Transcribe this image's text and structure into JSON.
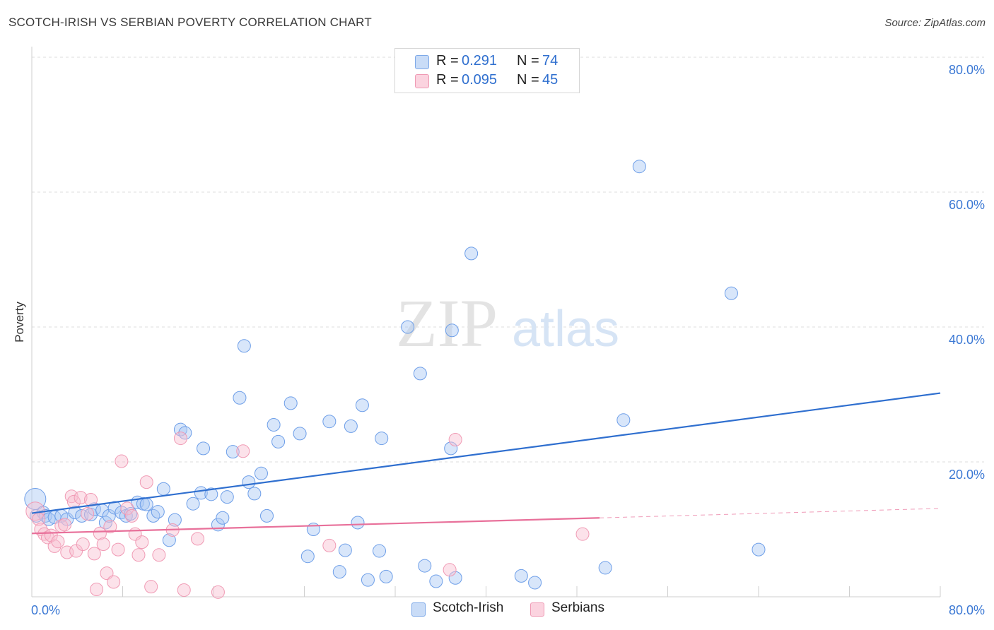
{
  "title": "SCOTCH-IRISH VS SERBIAN POVERTY CORRELATION CHART",
  "source": "Source: ZipAtlas.com",
  "watermark": {
    "zip": "ZIP",
    "atlas": "atlas"
  },
  "legend_top": [
    {
      "r_label": "R =",
      "r_value": "0.291",
      "n_label": "N =",
      "n_value": "74",
      "color": "#a8c8f4"
    },
    {
      "r_label": "R =",
      "r_value": "0.095",
      "n_label": "N =",
      "n_value": "45",
      "color": "#f8bfd0"
    }
  ],
  "legend_bottom": [
    {
      "label": "Scotch-Irish",
      "color": "#a8c8f4"
    },
    {
      "label": "Serbians",
      "color": "#f8bfd0"
    }
  ],
  "chart_data": {
    "type": "scatter",
    "title": "SCOTCH-IRISH VS SERBIAN POVERTY CORRELATION CHART",
    "xlabel": "",
    "ylabel": "Poverty",
    "xlim": [
      0,
      80
    ],
    "ylim": [
      0,
      80
    ],
    "x_tick_labels": [
      "0.0%",
      "80.0%"
    ],
    "y_tick_labels": [
      "20.0%",
      "40.0%",
      "60.0%",
      "80.0%"
    ],
    "y_ticks": [
      20,
      40,
      60,
      80
    ],
    "grid": true,
    "legend_position": "top-center",
    "series": [
      {
        "name": "Scotch-Irish",
        "color": "#6d9ee8",
        "fill": "#a8c8f4",
        "trend": {
          "x0": 0,
          "y0": 12.4,
          "x1": 80,
          "y1": 30.2,
          "color": "#2f6fcf"
        },
        "points": [
          [
            0.3,
            14.5
          ],
          [
            0.4,
            12.0
          ],
          [
            1.0,
            12.5
          ],
          [
            1.2,
            12.0
          ],
          [
            1.5,
            11.5
          ],
          [
            2.0,
            11.8
          ],
          [
            2.6,
            12.0
          ],
          [
            3.1,
            11.5
          ],
          [
            3.8,
            12.5
          ],
          [
            4.4,
            12.0
          ],
          [
            5.2,
            12.2
          ],
          [
            5.5,
            13.0
          ],
          [
            6.2,
            12.8
          ],
          [
            6.5,
            11.0
          ],
          [
            6.8,
            12.0
          ],
          [
            7.3,
            13.2
          ],
          [
            7.9,
            12.5
          ],
          [
            8.3,
            12.0
          ],
          [
            8.7,
            12.3
          ],
          [
            9.3,
            14.0
          ],
          [
            9.8,
            13.8
          ],
          [
            10.1,
            13.7
          ],
          [
            10.7,
            12.0
          ],
          [
            11.1,
            12.6
          ],
          [
            11.6,
            16.0
          ],
          [
            12.1,
            8.4
          ],
          [
            12.6,
            11.4
          ],
          [
            13.1,
            24.8
          ],
          [
            13.5,
            24.3
          ],
          [
            14.2,
            13.8
          ],
          [
            14.9,
            15.4
          ],
          [
            15.1,
            22.0
          ],
          [
            15.8,
            15.2
          ],
          [
            16.4,
            10.7
          ],
          [
            16.8,
            11.7
          ],
          [
            17.2,
            14.8
          ],
          [
            17.7,
            21.5
          ],
          [
            18.3,
            29.5
          ],
          [
            18.7,
            37.2
          ],
          [
            19.1,
            17.0
          ],
          [
            19.6,
            15.3
          ],
          [
            20.2,
            18.3
          ],
          [
            20.7,
            12.0
          ],
          [
            21.3,
            25.5
          ],
          [
            21.7,
            23.0
          ],
          [
            22.8,
            28.7
          ],
          [
            23.6,
            24.2
          ],
          [
            24.3,
            6.0
          ],
          [
            24.8,
            10.0
          ],
          [
            26.2,
            26.0
          ],
          [
            27.1,
            3.7
          ],
          [
            27.6,
            6.9
          ],
          [
            28.1,
            25.3
          ],
          [
            28.7,
            11.0
          ],
          [
            29.1,
            28.4
          ],
          [
            29.6,
            2.5
          ],
          [
            30.6,
            6.8
          ],
          [
            30.8,
            23.5
          ],
          [
            31.2,
            3.0
          ],
          [
            33.1,
            40.0
          ],
          [
            34.2,
            33.1
          ],
          [
            34.6,
            4.6
          ],
          [
            35.6,
            2.3
          ],
          [
            36.9,
            22.0
          ],
          [
            37.0,
            39.5
          ],
          [
            37.3,
            2.8
          ],
          [
            38.7,
            50.9
          ],
          [
            43.1,
            3.1
          ],
          [
            44.3,
            2.1
          ],
          [
            50.5,
            4.3
          ],
          [
            52.1,
            26.2
          ],
          [
            53.5,
            63.8
          ],
          [
            61.6,
            45.0
          ],
          [
            64.0,
            7.0
          ]
        ]
      },
      {
        "name": "Serbians",
        "color": "#f09ab4",
        "fill": "#f8bfd0",
        "trend": {
          "x0": 0,
          "y0": 9.4,
          "x1": 50,
          "y1": 11.7,
          "x2": 80,
          "y2": 13.1,
          "color": "#e8709a"
        },
        "points": [
          [
            0.3,
            12.7
          ],
          [
            0.6,
            11.5
          ],
          [
            0.8,
            10.0
          ],
          [
            1.1,
            9.3
          ],
          [
            1.4,
            8.8
          ],
          [
            1.7,
            9.1
          ],
          [
            2.0,
            7.5
          ],
          [
            2.3,
            8.2
          ],
          [
            2.6,
            10.5
          ],
          [
            2.9,
            10.7
          ],
          [
            3.1,
            6.6
          ],
          [
            3.5,
            14.9
          ],
          [
            3.7,
            14.1
          ],
          [
            3.9,
            6.8
          ],
          [
            4.3,
            14.7
          ],
          [
            4.5,
            7.8
          ],
          [
            4.9,
            12.3
          ],
          [
            5.2,
            14.4
          ],
          [
            5.5,
            6.4
          ],
          [
            5.7,
            1.1
          ],
          [
            6.0,
            9.4
          ],
          [
            6.3,
            7.8
          ],
          [
            6.6,
            3.5
          ],
          [
            6.9,
            10.4
          ],
          [
            7.2,
            2.2
          ],
          [
            7.6,
            7.0
          ],
          [
            7.9,
            20.1
          ],
          [
            8.4,
            13.1
          ],
          [
            8.8,
            12.0
          ],
          [
            9.1,
            9.3
          ],
          [
            9.4,
            6.2
          ],
          [
            9.7,
            8.1
          ],
          [
            10.1,
            17.0
          ],
          [
            10.5,
            1.5
          ],
          [
            11.2,
            6.2
          ],
          [
            12.4,
            9.9
          ],
          [
            13.1,
            23.5
          ],
          [
            13.4,
            1.0
          ],
          [
            14.6,
            8.6
          ],
          [
            16.4,
            0.7
          ],
          [
            18.6,
            21.6
          ],
          [
            26.2,
            7.6
          ],
          [
            36.8,
            4.0
          ],
          [
            37.3,
            23.3
          ],
          [
            48.5,
            9.3
          ]
        ]
      }
    ]
  }
}
